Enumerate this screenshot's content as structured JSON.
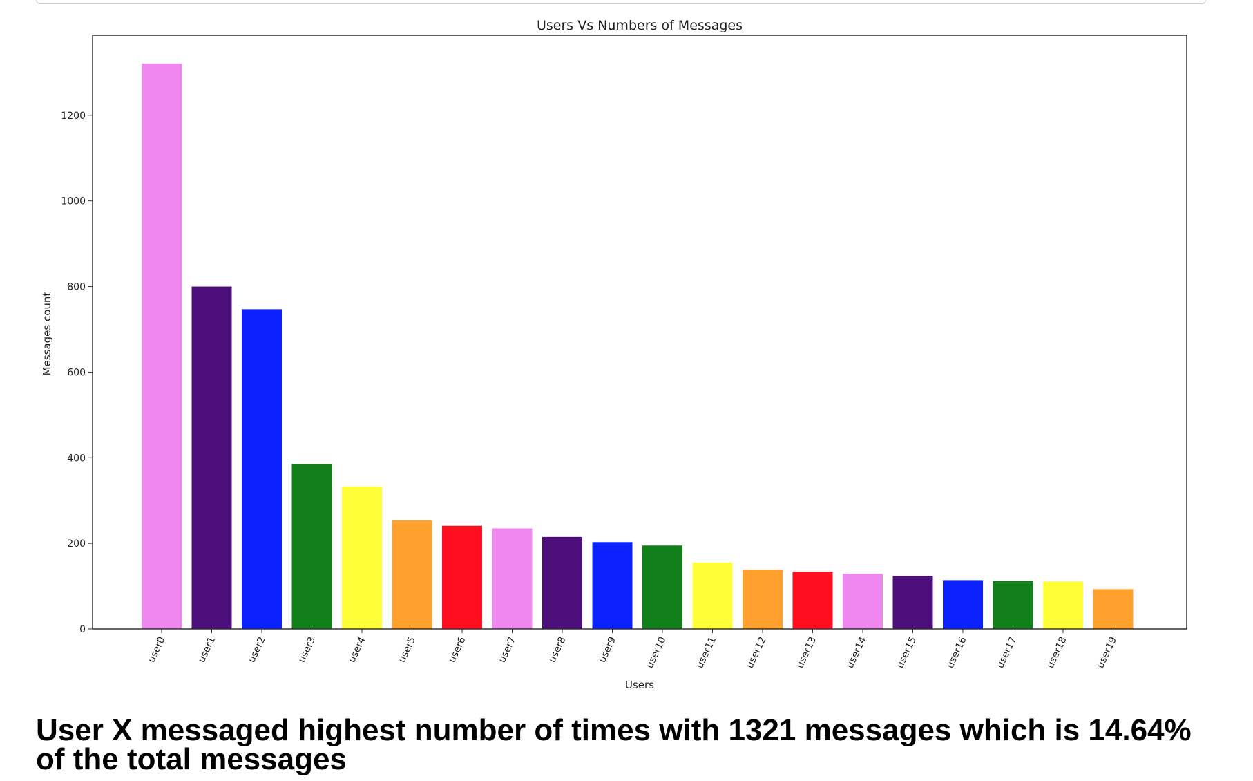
{
  "chart_data": {
    "type": "bar",
    "title": "Users Vs Numbers of Messages",
    "xlabel": "Users",
    "ylabel": "Messages count",
    "categories": [
      "user0",
      "user1",
      "user2",
      "user3",
      "user4",
      "user5",
      "user6",
      "user7",
      "user8",
      "user9",
      "user10",
      "user11",
      "user12",
      "user13",
      "user14",
      "user15",
      "user16",
      "user17",
      "user18",
      "user19"
    ],
    "values": [
      1321,
      800,
      747,
      385,
      333,
      254,
      241,
      235,
      215,
      203,
      195,
      155,
      139,
      134,
      129,
      124,
      114,
      112,
      111,
      93
    ],
    "colors": [
      "#ee88ee",
      "#4b0e7a",
      "#0b22ff",
      "#11801a",
      "#ffff38",
      "#ffa12c",
      "#ff0e1f",
      "#ee88ee",
      "#4b0e7a",
      "#0b22ff",
      "#11801a",
      "#ffff38",
      "#ffa12c",
      "#ff0e1f",
      "#ee88ee",
      "#4b0e7a",
      "#0b22ff",
      "#11801a",
      "#ffff38",
      "#ffa12c"
    ],
    "yticks": [
      0,
      200,
      400,
      600,
      800,
      1000,
      1200
    ],
    "ylim": [
      0,
      1387
    ],
    "grid": false,
    "legend": "none"
  },
  "summary": {
    "text": "User X messaged highest number of times with 1321 messages which is 14.64% of the total messages"
  }
}
